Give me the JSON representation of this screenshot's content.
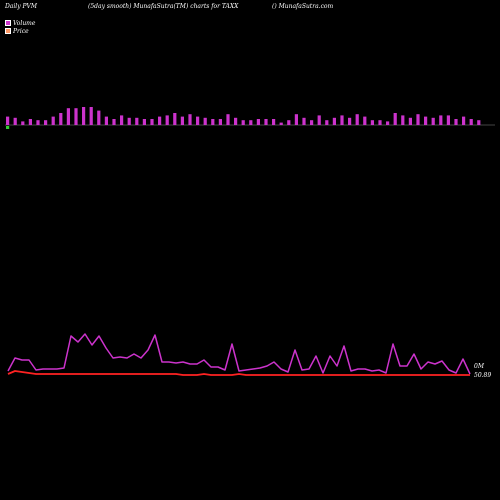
{
  "header": {
    "left": "Daily PVM",
    "center": "(5day smooth) MunafaSutra(TM) charts for TAXX",
    "right": "() MunafaSutra.com"
  },
  "legend": {
    "volume_label": "Volume",
    "price_label": "Price",
    "volume_color": "#cc33cc",
    "price_color": "#ff6644"
  },
  "labels": {
    "volume_end": "0M",
    "price_end": "50.89"
  },
  "colors": {
    "bar": "#cc33cc",
    "bar_down": "#33cc33",
    "volume_line": "#cc33cc",
    "price_line": "#ff2222"
  },
  "chart_data": {
    "type": "line",
    "volume_bars": [
      7,
      6,
      3,
      5,
      4,
      4,
      7,
      10,
      14,
      14,
      15,
      15,
      12,
      7,
      5,
      8,
      6,
      6,
      5,
      5,
      7,
      8,
      10,
      7,
      9,
      7,
      6,
      5,
      5,
      9,
      6,
      4,
      4,
      5,
      5,
      5,
      2,
      4,
      9,
      6,
      4,
      8,
      4,
      6,
      8,
      6,
      9,
      7,
      4,
      4,
      3,
      10,
      8,
      6,
      9,
      7,
      6,
      8,
      8,
      5,
      7,
      5,
      4
    ],
    "down_bar_index": 0,
    "volume_line": [
      4,
      17,
      15,
      15,
      5,
      6,
      6,
      6,
      7,
      39,
      33,
      41,
      30,
      39,
      27,
      17,
      18,
      17,
      21,
      17,
      25,
      40,
      13,
      13,
      12,
      13,
      11,
      11,
      15,
      8,
      8,
      5,
      31,
      4,
      5,
      6,
      7,
      9,
      13,
      6,
      3,
      25,
      5,
      6,
      19,
      2,
      19,
      9,
      29,
      4,
      6,
      6,
      4,
      5,
      2,
      31,
      9,
      9,
      21,
      6,
      13,
      11,
      14,
      5,
      2,
      16,
      1
    ],
    "price_line": [
      1,
      4,
      3,
      2,
      1,
      1,
      1,
      1,
      1,
      1,
      1,
      1,
      1,
      1,
      1,
      1,
      1,
      1,
      1,
      1,
      1,
      1,
      1,
      1,
      1,
      0,
      0,
      0,
      1,
      0,
      0,
      0,
      0,
      1,
      0,
      0,
      0,
      0,
      0,
      0,
      0,
      0,
      0,
      0,
      0,
      0,
      0,
      0,
      0,
      0,
      0,
      0,
      0,
      0,
      0,
      0,
      0,
      0,
      0,
      0,
      0,
      0,
      0,
      0,
      0,
      0,
      0
    ]
  }
}
